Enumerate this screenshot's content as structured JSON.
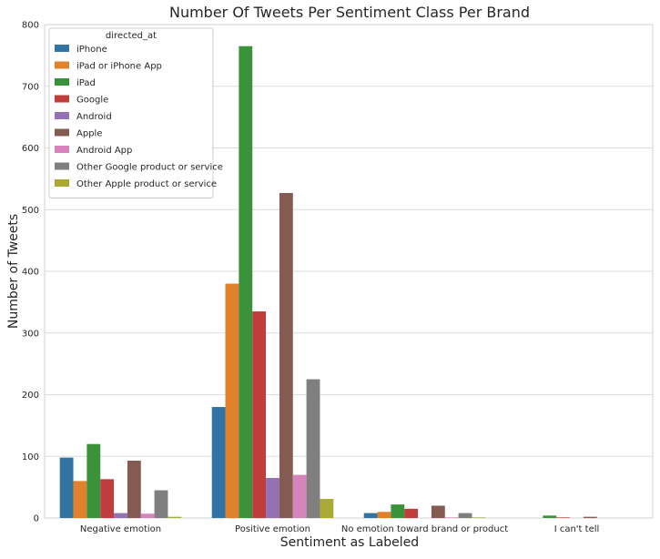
{
  "chart_data": {
    "type": "bar",
    "title": "Number Of Tweets Per Sentiment Class Per Brand",
    "xlabel": "Sentiment as Labeled",
    "ylabel": "Number of Tweets",
    "ylim": [
      0,
      800
    ],
    "yticks": [
      0,
      100,
      200,
      300,
      400,
      500,
      600,
      700,
      800
    ],
    "grid": true,
    "legend_placement": "top-left",
    "legend_title": "directed_at",
    "categories": [
      "Negative emotion",
      "Positive emotion",
      "No emotion toward brand or product",
      "I can't tell"
    ],
    "series": [
      {
        "name": "iPhone",
        "color": "#3274a1",
        "values": [
          98,
          180,
          8,
          0
        ]
      },
      {
        "name": "iPad or iPhone App",
        "color": "#e1812c",
        "values": [
          60,
          380,
          10,
          0
        ]
      },
      {
        "name": "iPad",
        "color": "#3a923a",
        "values": [
          120,
          765,
          22,
          4
        ]
      },
      {
        "name": "Google",
        "color": "#c03d3e",
        "values": [
          63,
          335,
          15,
          1
        ]
      },
      {
        "name": "Android",
        "color": "#9372b2",
        "values": [
          8,
          65,
          0,
          0
        ]
      },
      {
        "name": "Apple",
        "color": "#845b53",
        "values": [
          93,
          527,
          20,
          2
        ]
      },
      {
        "name": "Android App",
        "color": "#d684bd",
        "values": [
          7,
          70,
          1,
          0
        ]
      },
      {
        "name": "Other Google product or service",
        "color": "#7f7f7f",
        "values": [
          45,
          225,
          8,
          0
        ]
      },
      {
        "name": "Other Apple product or service",
        "color": "#a9aa35",
        "values": [
          2,
          31,
          1,
          0
        ]
      }
    ]
  }
}
